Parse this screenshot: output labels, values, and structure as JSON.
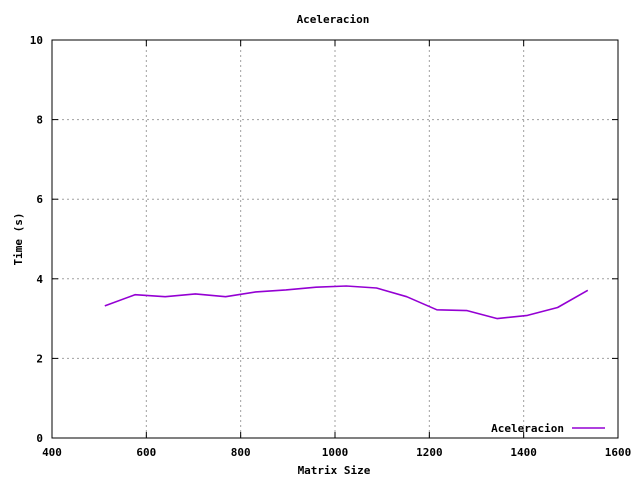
{
  "chart_data": {
    "type": "line",
    "title": "Aceleracion",
    "xlabel": "Matrix Size",
    "ylabel": "Time (s)",
    "xlim": [
      400,
      1600
    ],
    "ylim": [
      0,
      10
    ],
    "xticks": [
      400,
      600,
      800,
      1000,
      1200,
      1400,
      1600
    ],
    "yticks": [
      0,
      2,
      4,
      6,
      8,
      10
    ],
    "grid": true,
    "legend_position": "bottom-right",
    "series": [
      {
        "name": "Aceleracion",
        "color": "#9400d3",
        "x": [
          512,
          576,
          640,
          704,
          768,
          832,
          896,
          960,
          1024,
          1088,
          1152,
          1216,
          1280,
          1344,
          1408,
          1472,
          1536
        ],
        "y": [
          3.32,
          3.6,
          3.55,
          3.62,
          3.55,
          3.67,
          3.72,
          3.79,
          3.82,
          3.77,
          3.55,
          3.22,
          3.2,
          3.0,
          3.08,
          3.28,
          3.71
        ]
      }
    ]
  }
}
